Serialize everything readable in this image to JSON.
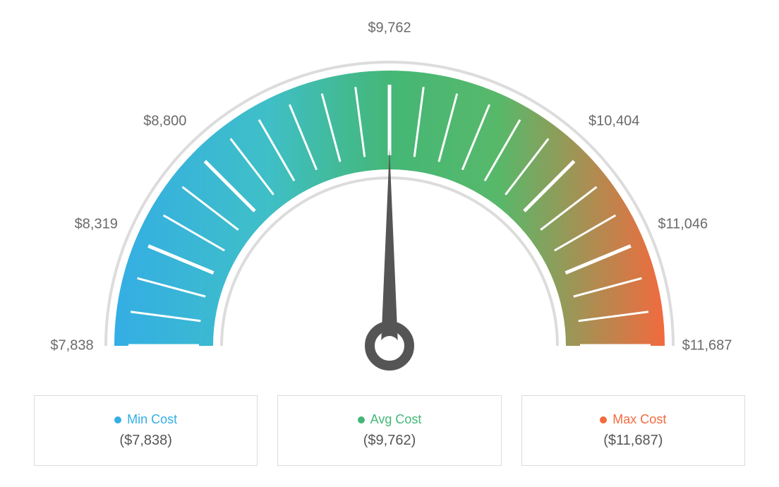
{
  "gauge": {
    "type": "gauge-chart",
    "min": 7838,
    "max": 11687,
    "value": 9762,
    "tick_labels": [
      "$7,838",
      "$8,319",
      "$8,800",
      "$9,762",
      "$10,404",
      "$11,046",
      "$11,687"
    ],
    "tick_angles_deg": [
      -90,
      -67.5,
      -45,
      0,
      45,
      67.5,
      90
    ],
    "minor_tick_count": 24,
    "needle_angle_deg": 0,
    "arc_outer_radius": 390,
    "arc_inner_radius": 250,
    "outline_outer_radius": 400,
    "outline_inner_radius": 240,
    "colors": {
      "left": "#34aee4",
      "mid": "#44b776",
      "right": "#f26a3e",
      "outline": "#dcdcdc",
      "tick": "#ffffff",
      "label": "#6a6a6a",
      "needle": "#555555",
      "background": "#ffffff"
    },
    "label_fontsize": 20
  },
  "legend": {
    "cards": [
      {
        "dot_color": "#34aee4",
        "text_color": "#34aee4",
        "title": "Min Cost",
        "value": "($7,838)"
      },
      {
        "dot_color": "#44b776",
        "text_color": "#44b776",
        "title": "Avg Cost",
        "value": "($9,762)"
      },
      {
        "dot_color": "#f26a3e",
        "text_color": "#f26a3e",
        "title": "Max Cost",
        "value": "($11,687)"
      }
    ],
    "border_color": "#dcdcdc",
    "value_color": "#555555",
    "title_fontsize": 18,
    "value_fontsize": 20
  }
}
